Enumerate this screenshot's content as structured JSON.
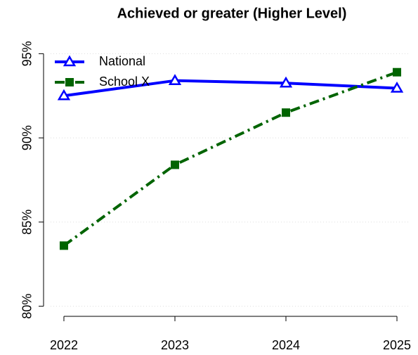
{
  "chart_data": {
    "type": "line",
    "title": "Achieved or greater (Higher Level)",
    "x": [
      2022,
      2023,
      2024,
      2025
    ],
    "series": [
      {
        "name": "National",
        "color": "#0000ff",
        "values": [
          92.5,
          93.4,
          93.25,
          92.95
        ]
      },
      {
        "name": "School X",
        "color": "#006400",
        "values": [
          83.6,
          88.4,
          91.5,
          93.9
        ]
      }
    ],
    "xlim": [
      2021.88,
      2025.12
    ],
    "xticks": [
      2022,
      2023,
      2024,
      2025
    ],
    "ylim": [
      79.4,
      95.6
    ],
    "yticks": [
      {
        "value": 80,
        "label": "80%"
      },
      {
        "value": 85,
        "label": "85%"
      },
      {
        "value": 90,
        "label": "90%"
      },
      {
        "value": 95,
        "label": "95%"
      }
    ],
    "grid": true,
    "legend": "topleft"
  }
}
